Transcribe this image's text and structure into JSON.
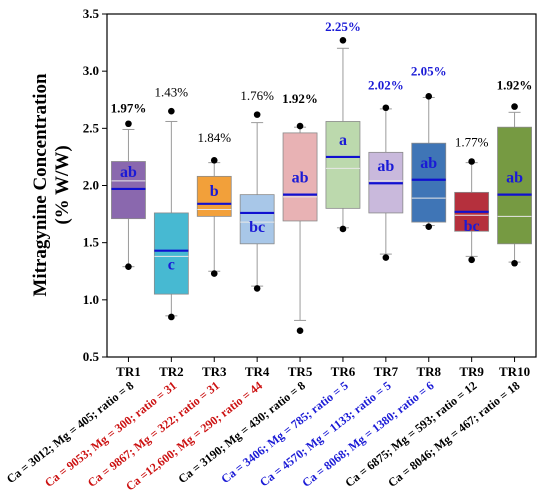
{
  "chart_data": {
    "type": "box",
    "title": "",
    "ylabel_line1": "Mitragynine Concentration",
    "ylabel_line2": "(% W/W)",
    "ylim": [
      0.5,
      3.5
    ],
    "yticks": [
      "0.5",
      "1.0",
      "1.5",
      "2.0",
      "2.5",
      "3.0",
      "3.5"
    ],
    "grid": false,
    "mean_line_color": "#1010d0",
    "categories": [
      {
        "name": "TR1",
        "color": "#8a68ae",
        "min": 1.29,
        "q1": 1.71,
        "median": 2.04,
        "q3": 2.21,
        "max": 2.49,
        "mean": 1.97,
        "outliers": [
          2.54,
          1.29
        ],
        "letter": "ab",
        "mean_label": "1.97%",
        "mean_label_color": "#000000",
        "mean_label_bold": true,
        "mean_label_y": 2.64,
        "xlabel": "Ca = 3012; Mg = 405; ratio = 8",
        "xlabel_color": "#000000"
      },
      {
        "name": "TR2",
        "color": "#47b9d2",
        "min": 0.86,
        "q1": 1.05,
        "median": 1.38,
        "q3": 1.76,
        "max": 2.56,
        "mean": 1.43,
        "outliers": [
          2.65,
          0.85
        ],
        "letter": "c",
        "mean_label": "1.43%",
        "mean_label_color": "#000000",
        "mean_label_bold": false,
        "mean_label_y": 2.78,
        "xlabel": "Ca = 9053; Mg = 300; ratio = 31",
        "xlabel_color": "#cc1111"
      },
      {
        "name": "TR3",
        "color": "#f2a03a",
        "min": 1.25,
        "q1": 1.73,
        "median": 1.79,
        "q3": 2.08,
        "max": 2.2,
        "mean": 1.84,
        "outliers": [
          2.22,
          1.23
        ],
        "letter": "b",
        "mean_label": "1.84%",
        "mean_label_color": "#000000",
        "mean_label_bold": false,
        "mean_label_y": 2.38,
        "xlabel": "Ca = 9867; Mg = 322; ratio = 31",
        "xlabel_color": "#cc1111"
      },
      {
        "name": "TR4",
        "color": "#a8c7e8",
        "min": 1.12,
        "q1": 1.49,
        "median": 1.68,
        "q3": 1.92,
        "max": 2.55,
        "mean": 1.76,
        "outliers": [
          2.62,
          1.1
        ],
        "letter": "bc",
        "mean_label": "1.76%",
        "mean_label_color": "#000000",
        "mean_label_bold": false,
        "mean_label_y": 2.75,
        "xlabel": "Ca =12,600; Mg = 290; ratio = 44",
        "xlabel_color": "#cc1111"
      },
      {
        "name": "TR5",
        "color": "#e8b2b4",
        "min": 0.82,
        "q1": 1.69,
        "median": 1.9,
        "q3": 2.46,
        "max": 2.51,
        "mean": 1.92,
        "outliers": [
          2.52,
          0.73
        ],
        "letter": "ab",
        "mean_label": "1.92%",
        "mean_label_color": "#000000",
        "mean_label_bold": true,
        "mean_label_y": 2.72,
        "xlabel": "Ca = 3190; Mg = 430; ratio = 8",
        "xlabel_color": "#000000"
      },
      {
        "name": "TR6",
        "color": "#bcd9ad",
        "min": 1.63,
        "q1": 1.8,
        "median": 2.15,
        "q3": 2.56,
        "max": 3.2,
        "mean": 2.25,
        "outliers": [
          3.27,
          1.62
        ],
        "letter": "a",
        "mean_label": "2.25%",
        "mean_label_color": "#1a1ad6",
        "mean_label_bold": true,
        "mean_label_y": 3.35,
        "xlabel": "Ca = 3406; Mg = 785; ratio = 5",
        "xlabel_color": "#1a1ad6"
      },
      {
        "name": "TR7",
        "color": "#c9b9dc",
        "min": 1.4,
        "q1": 1.76,
        "median": 2.04,
        "q3": 2.29,
        "max": 2.67,
        "mean": 2.02,
        "outliers": [
          2.68,
          1.37
        ],
        "letter": "ab",
        "mean_label": "2.02%",
        "mean_label_color": "#1a1ad6",
        "mean_label_bold": true,
        "mean_label_y": 2.84,
        "xlabel": "Ca = 4570; Mg = 1133; ratio = 5",
        "xlabel_color": "#1a1ad6"
      },
      {
        "name": "TR8",
        "color": "#3f75b6",
        "min": 1.65,
        "q1": 1.68,
        "median": 1.89,
        "q3": 2.37,
        "max": 2.77,
        "mean": 2.05,
        "outliers": [
          2.78,
          1.64
        ],
        "letter": "ab",
        "mean_label": "2.05%",
        "mean_label_color": "#1a1ad6",
        "mean_label_bold": true,
        "mean_label_y": 2.96,
        "xlabel": "Ca = 8068; Mg = 1380; ratio = 6",
        "xlabel_color": "#1a1ad6"
      },
      {
        "name": "TR9",
        "color": "#b5303d",
        "min": 1.38,
        "q1": 1.6,
        "median": 1.74,
        "q3": 1.94,
        "max": 2.2,
        "mean": 1.77,
        "outliers": [
          2.21,
          1.35
        ],
        "letter": "bc",
        "mean_label": "1.77%",
        "mean_label_color": "#000000",
        "mean_label_bold": false,
        "mean_label_y": 2.34,
        "xlabel": "Ca = 6875; Mg = 593; ratio = 12",
        "xlabel_color": "#000000"
      },
      {
        "name": "TR10",
        "color": "#769a42",
        "min": 1.33,
        "q1": 1.49,
        "median": 1.73,
        "q3": 2.51,
        "max": 2.64,
        "mean": 1.92,
        "outliers": [
          2.69,
          1.32
        ],
        "letter": "ab",
        "mean_label": "1.92%",
        "mean_label_color": "#000000",
        "mean_label_bold": true,
        "mean_label_y": 2.84,
        "xlabel": "Ca = 8046; Mg = 467; ratio = 18",
        "xlabel_color": "#000000"
      }
    ]
  }
}
